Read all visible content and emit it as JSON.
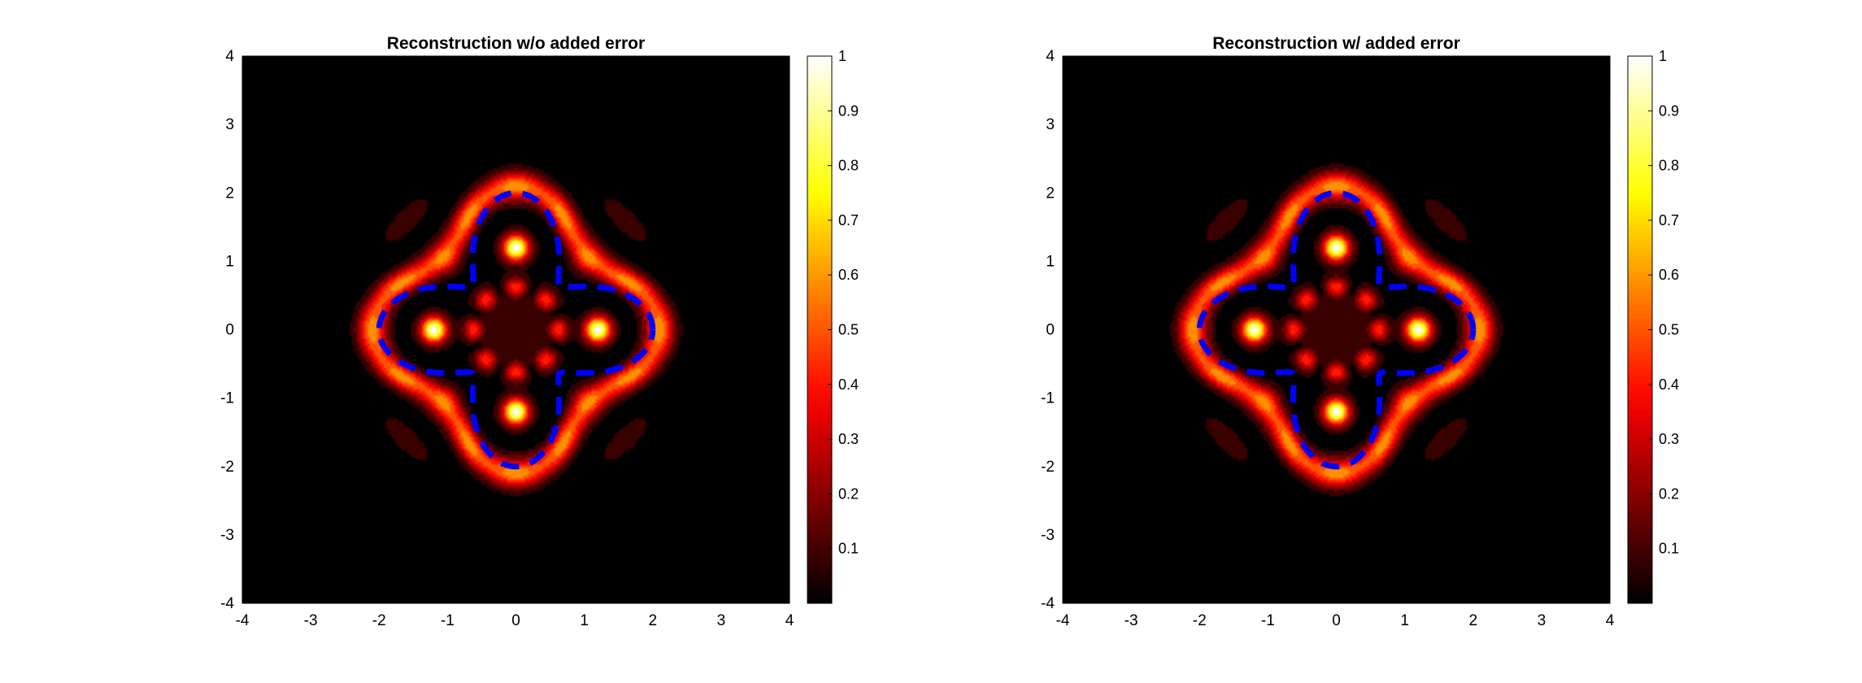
{
  "chart_data": [
    {
      "type": "heatmap",
      "title": "Reconstruction w/o added error",
      "xlabel": "",
      "ylabel": "",
      "xlim": [
        -4,
        4
      ],
      "ylim": [
        -4,
        4
      ],
      "xticks": [
        "-4",
        "-3",
        "-2",
        "-1",
        "0",
        "1",
        "2",
        "3",
        "4"
      ],
      "yticks": [
        "4",
        "3",
        "2",
        "1",
        "0",
        "-1",
        "-2",
        "-3",
        "-4"
      ],
      "colormap": "hot",
      "colorbar": {
        "range": [
          0,
          1
        ],
        "ticks": [
          "1",
          "0.9",
          "0.8",
          "0.7",
          "0.6",
          "0.5",
          "0.4",
          "0.3",
          "0.2",
          "0.1"
        ]
      },
      "overlay": {
        "type": "dashed-curve",
        "color": "#0000ff",
        "description_values": {
          "shape": "four-lobed boundary",
          "max_radius": 2,
          "min_radius": 0.9
        }
      },
      "peaks": [
        {
          "x": 0,
          "y": 1.2,
          "value": 1.0
        },
        {
          "x": 1.2,
          "y": 0,
          "value": 1.0
        },
        {
          "x": 0,
          "y": -1.2,
          "value": 1.0
        },
        {
          "x": -1.2,
          "y": 0,
          "value": 1.0
        }
      ],
      "ring": {
        "radius_at_axes": 2.1,
        "radius_at_diagonals": 1.5,
        "value": 0.6
      },
      "inner_lobes": {
        "count": 8,
        "radius": 0.62,
        "value": 0.4
      },
      "side_lobes": [
        {
          "x": -1.6,
          "y": 1.6,
          "value": 0.12
        },
        {
          "x": 1.6,
          "y": 1.6,
          "value": 0.12
        },
        {
          "x": -1.6,
          "y": -1.6,
          "value": 0.12
        },
        {
          "x": 1.6,
          "y": -1.6,
          "value": 0.12
        }
      ]
    },
    {
      "type": "heatmap",
      "title": "Reconstruction w/ added error",
      "xlabel": "",
      "ylabel": "",
      "xlim": [
        -4,
        4
      ],
      "ylim": [
        -4,
        4
      ],
      "xticks": [
        "-4",
        "-3",
        "-2",
        "-1",
        "0",
        "1",
        "2",
        "3",
        "4"
      ],
      "yticks": [
        "4",
        "3",
        "2",
        "1",
        "0",
        "-1",
        "-2",
        "-3",
        "-4"
      ],
      "colormap": "hot",
      "colorbar": {
        "range": [
          0,
          1
        ],
        "ticks": [
          "1",
          "0.9",
          "0.8",
          "0.7",
          "0.6",
          "0.5",
          "0.4",
          "0.3",
          "0.2",
          "0.1"
        ]
      },
      "overlay": {
        "type": "dashed-curve",
        "color": "#0000ff",
        "description_values": {
          "shape": "four-lobed boundary",
          "max_radius": 2,
          "min_radius": 0.9
        }
      },
      "peaks": [
        {
          "x": 0,
          "y": 1.2,
          "value": 1.0
        },
        {
          "x": 1.2,
          "y": 0,
          "value": 1.0
        },
        {
          "x": 0,
          "y": -1.2,
          "value": 1.0
        },
        {
          "x": -1.2,
          "y": 0,
          "value": 1.0
        }
      ],
      "ring": {
        "radius_at_axes": 2.1,
        "radius_at_diagonals": 1.5,
        "value": 0.6
      },
      "inner_lobes": {
        "count": 8,
        "radius": 0.62,
        "value": 0.4
      },
      "side_lobes": [
        {
          "x": -1.6,
          "y": 1.6,
          "value": 0.12
        },
        {
          "x": 1.6,
          "y": 1.6,
          "value": 0.12
        },
        {
          "x": -1.6,
          "y": -1.6,
          "value": 0.12
        },
        {
          "x": 1.6,
          "y": -1.6,
          "value": 0.12
        }
      ]
    }
  ]
}
